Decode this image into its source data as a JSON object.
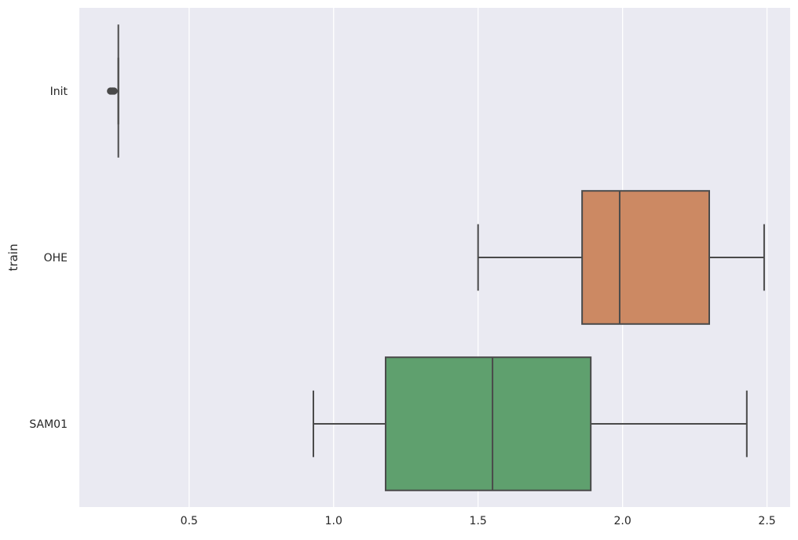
{
  "chart_data": {
    "type": "boxplot",
    "orientation": "horizontal",
    "title": "",
    "xlabel": "",
    "ylabel": "train",
    "xlim": [
      0.12,
      2.58
    ],
    "xticks": [
      0.5,
      1.0,
      1.5,
      2.0,
      2.5
    ],
    "xtick_labels": [
      "0.5",
      "1.0",
      "1.5",
      "2.0",
      "2.5"
    ],
    "grid": true,
    "background_color": "#eaeaf2",
    "grid_color": "#ffffff",
    "line_color": "#4a4a4a",
    "categories": [
      "Init",
      "OHE",
      "SAM01"
    ],
    "boxes": [
      {
        "category": "Init",
        "color": "#5f7fbf",
        "whisker_low": 0.255,
        "q1": 0.255,
        "median": 0.255,
        "q3": 0.255,
        "whisker_high": 0.255,
        "outliers": [
          0.228,
          0.232,
          0.236,
          0.24
        ]
      },
      {
        "category": "OHE",
        "color": "#cc8963",
        "whisker_low": 1.5,
        "q1": 1.86,
        "median": 1.99,
        "q3": 2.3,
        "whisker_high": 2.49,
        "outliers": []
      },
      {
        "category": "SAM01",
        "color": "#5fa06e",
        "whisker_low": 0.93,
        "q1": 1.18,
        "median": 1.55,
        "q3": 1.89,
        "whisker_high": 2.43,
        "outliers": []
      }
    ]
  }
}
